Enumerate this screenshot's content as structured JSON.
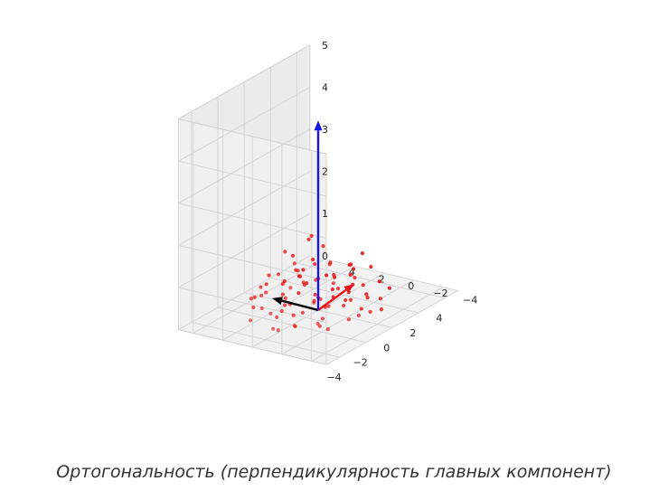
{
  "caption": "Ортогональность (перпендикулярность главных компонент)",
  "chart_data": {
    "type": "scatter",
    "projection": "3d",
    "title": "",
    "xlabel": "",
    "ylabel": "",
    "zlabel": "",
    "xlim": [
      -5,
      5
    ],
    "ylim": [
      -5,
      5
    ],
    "zlim": [
      0,
      5
    ],
    "x_ticks": [
      "−4",
      "−2",
      "0",
      "2",
      "4"
    ],
    "y_ticks": [
      "−4",
      "−2",
      "0",
      "2",
      "4"
    ],
    "z_ticks": [
      "0",
      "1",
      "2",
      "3",
      "4",
      "5"
    ],
    "grid": true,
    "point_color": "#e8151b",
    "points": [
      [
        -1.8,
        1.2,
        0.05
      ],
      [
        -1.2,
        0.6,
        0.04
      ],
      [
        -0.4,
        1.9,
        0.03
      ],
      [
        0.6,
        0.8,
        0.05
      ],
      [
        1.1,
        2.3,
        0.02
      ],
      [
        0.2,
        -0.3,
        0.06
      ],
      [
        -0.9,
        -1.1,
        0.05
      ],
      [
        1.4,
        -0.6,
        0.04
      ],
      [
        -2.2,
        -0.4,
        0.03
      ],
      [
        2.1,
        0.9,
        0.05
      ],
      [
        -0.3,
        1.1,
        0.9
      ],
      [
        0.4,
        2.6,
        1.1
      ],
      [
        -1.5,
        2.2,
        0.5
      ],
      [
        1.8,
        1.6,
        0.3
      ],
      [
        -0.7,
        0.3,
        0.7
      ],
      [
        0.9,
        -1.4,
        0.2
      ],
      [
        -1.9,
        -1.8,
        0.1
      ],
      [
        1.3,
        0.1,
        0.6
      ],
      [
        -0.5,
        -0.6,
        0.4
      ],
      [
        0.1,
        1.6,
        0.8
      ],
      [
        2.4,
        -0.2,
        0.2
      ],
      [
        -2.6,
        0.9,
        0.3
      ],
      [
        0.7,
        -2.3,
        0.1
      ],
      [
        -1.1,
        2.9,
        0.5
      ],
      [
        1.9,
        2.7,
        0.4
      ],
      [
        -0.2,
        -1.9,
        0.3
      ],
      [
        1.5,
        -2.0,
        0.2
      ],
      [
        -2.3,
        1.8,
        0.6
      ],
      [
        0.3,
        0.5,
        1.0
      ],
      [
        -1.4,
        -0.2,
        0.2
      ],
      [
        2.7,
        1.3,
        0.2
      ],
      [
        -0.8,
        1.5,
        0.3
      ],
      [
        1.0,
        1.1,
        0.1
      ],
      [
        -1.7,
        0.4,
        0.4
      ],
      [
        0.5,
        -0.9,
        0.5
      ],
      [
        2.2,
        -1.3,
        0.1
      ],
      [
        -0.1,
        2.3,
        0.2
      ],
      [
        1.6,
        0.6,
        0.8
      ],
      [
        -2.0,
        2.6,
        0.2
      ],
      [
        0.8,
        2.0,
        0.5
      ],
      [
        -1.0,
        -1.6,
        0.4
      ],
      [
        1.2,
        -1.0,
        0.3
      ],
      [
        -2.8,
        -0.9,
        0.2
      ],
      [
        0.0,
        0.0,
        0.3
      ],
      [
        2.9,
        0.4,
        0.3
      ],
      [
        -0.6,
        -2.6,
        0.1
      ],
      [
        1.7,
        -2.7,
        0.2
      ],
      [
        -1.3,
        1.3,
        0.1
      ],
      [
        0.4,
        -1.7,
        0.6
      ],
      [
        -2.5,
        -2.2,
        0.3
      ],
      [
        3.1,
        2.2,
        0.1
      ],
      [
        -3.2,
        0.2,
        0.1
      ],
      [
        0.9,
        3.2,
        0.2
      ],
      [
        -0.4,
        -3.1,
        0.2
      ],
      [
        2.5,
        -2.6,
        0.3
      ],
      [
        1.1,
        -3.3,
        0.1
      ],
      [
        -1.6,
        3.1,
        0.3
      ],
      [
        2.0,
        3.0,
        0.2
      ],
      [
        -2.9,
        2.0,
        0.1
      ],
      [
        3.3,
        -1.2,
        0.2
      ],
      [
        0.6,
        0.2,
        1.4
      ],
      [
        -0.9,
        0.8,
        1.2
      ],
      [
        1.3,
        1.8,
        1.3
      ],
      [
        -1.2,
        -0.9,
        1.0
      ],
      [
        0.2,
        -0.6,
        1.1
      ],
      [
        1.9,
        -0.7,
        0.7
      ],
      [
        -0.3,
        -1.3,
        0.8
      ],
      [
        -2.1,
        0.0,
        0.9
      ],
      [
        0.7,
        1.4,
        0.4
      ],
      [
        -0.6,
        2.8,
        0.7
      ],
      [
        1.4,
        -1.8,
        0.5
      ],
      [
        2.6,
        0.2,
        0.6
      ],
      [
        -1.8,
        -1.3,
        0.6
      ],
      [
        0.1,
        3.6,
        0.3
      ],
      [
        -3.6,
        -0.5,
        0.2
      ],
      [
        3.5,
        0.9,
        0.4
      ],
      [
        -0.2,
        -3.7,
        0.3
      ],
      [
        2.3,
        2.4,
        0.6
      ],
      [
        -2.4,
        -2.8,
        0.2
      ],
      [
        1.6,
        3.7,
        0.1
      ],
      [
        0.8,
        -0.3,
        0.2
      ],
      [
        -0.1,
        0.9,
        0.6
      ],
      [
        1.0,
        2.6,
        0.9
      ],
      [
        -1.9,
        1.0,
        1.1
      ],
      [
        0.3,
        -2.2,
        0.9
      ],
      [
        2.1,
        -1.7,
        0.8
      ],
      [
        -1.0,
        3.4,
        0.2
      ],
      [
        2.8,
        -0.5,
        0.9
      ],
      [
        -2.7,
        1.4,
        0.4
      ],
      [
        0.5,
        0.9,
        1.6
      ]
    ],
    "vectors": [
      {
        "color": "#e8151b",
        "from": [
          0,
          0,
          0
        ],
        "to": [
          3.3,
          0.5,
          0
        ]
      },
      {
        "color": "#000000",
        "from": [
          0,
          0,
          0
        ],
        "to": [
          0.1,
          3.2,
          0
        ]
      },
      {
        "color": "#1a13e8",
        "from": [
          0,
          0,
          0
        ],
        "to": [
          0,
          0,
          4.5
        ]
      }
    ]
  }
}
